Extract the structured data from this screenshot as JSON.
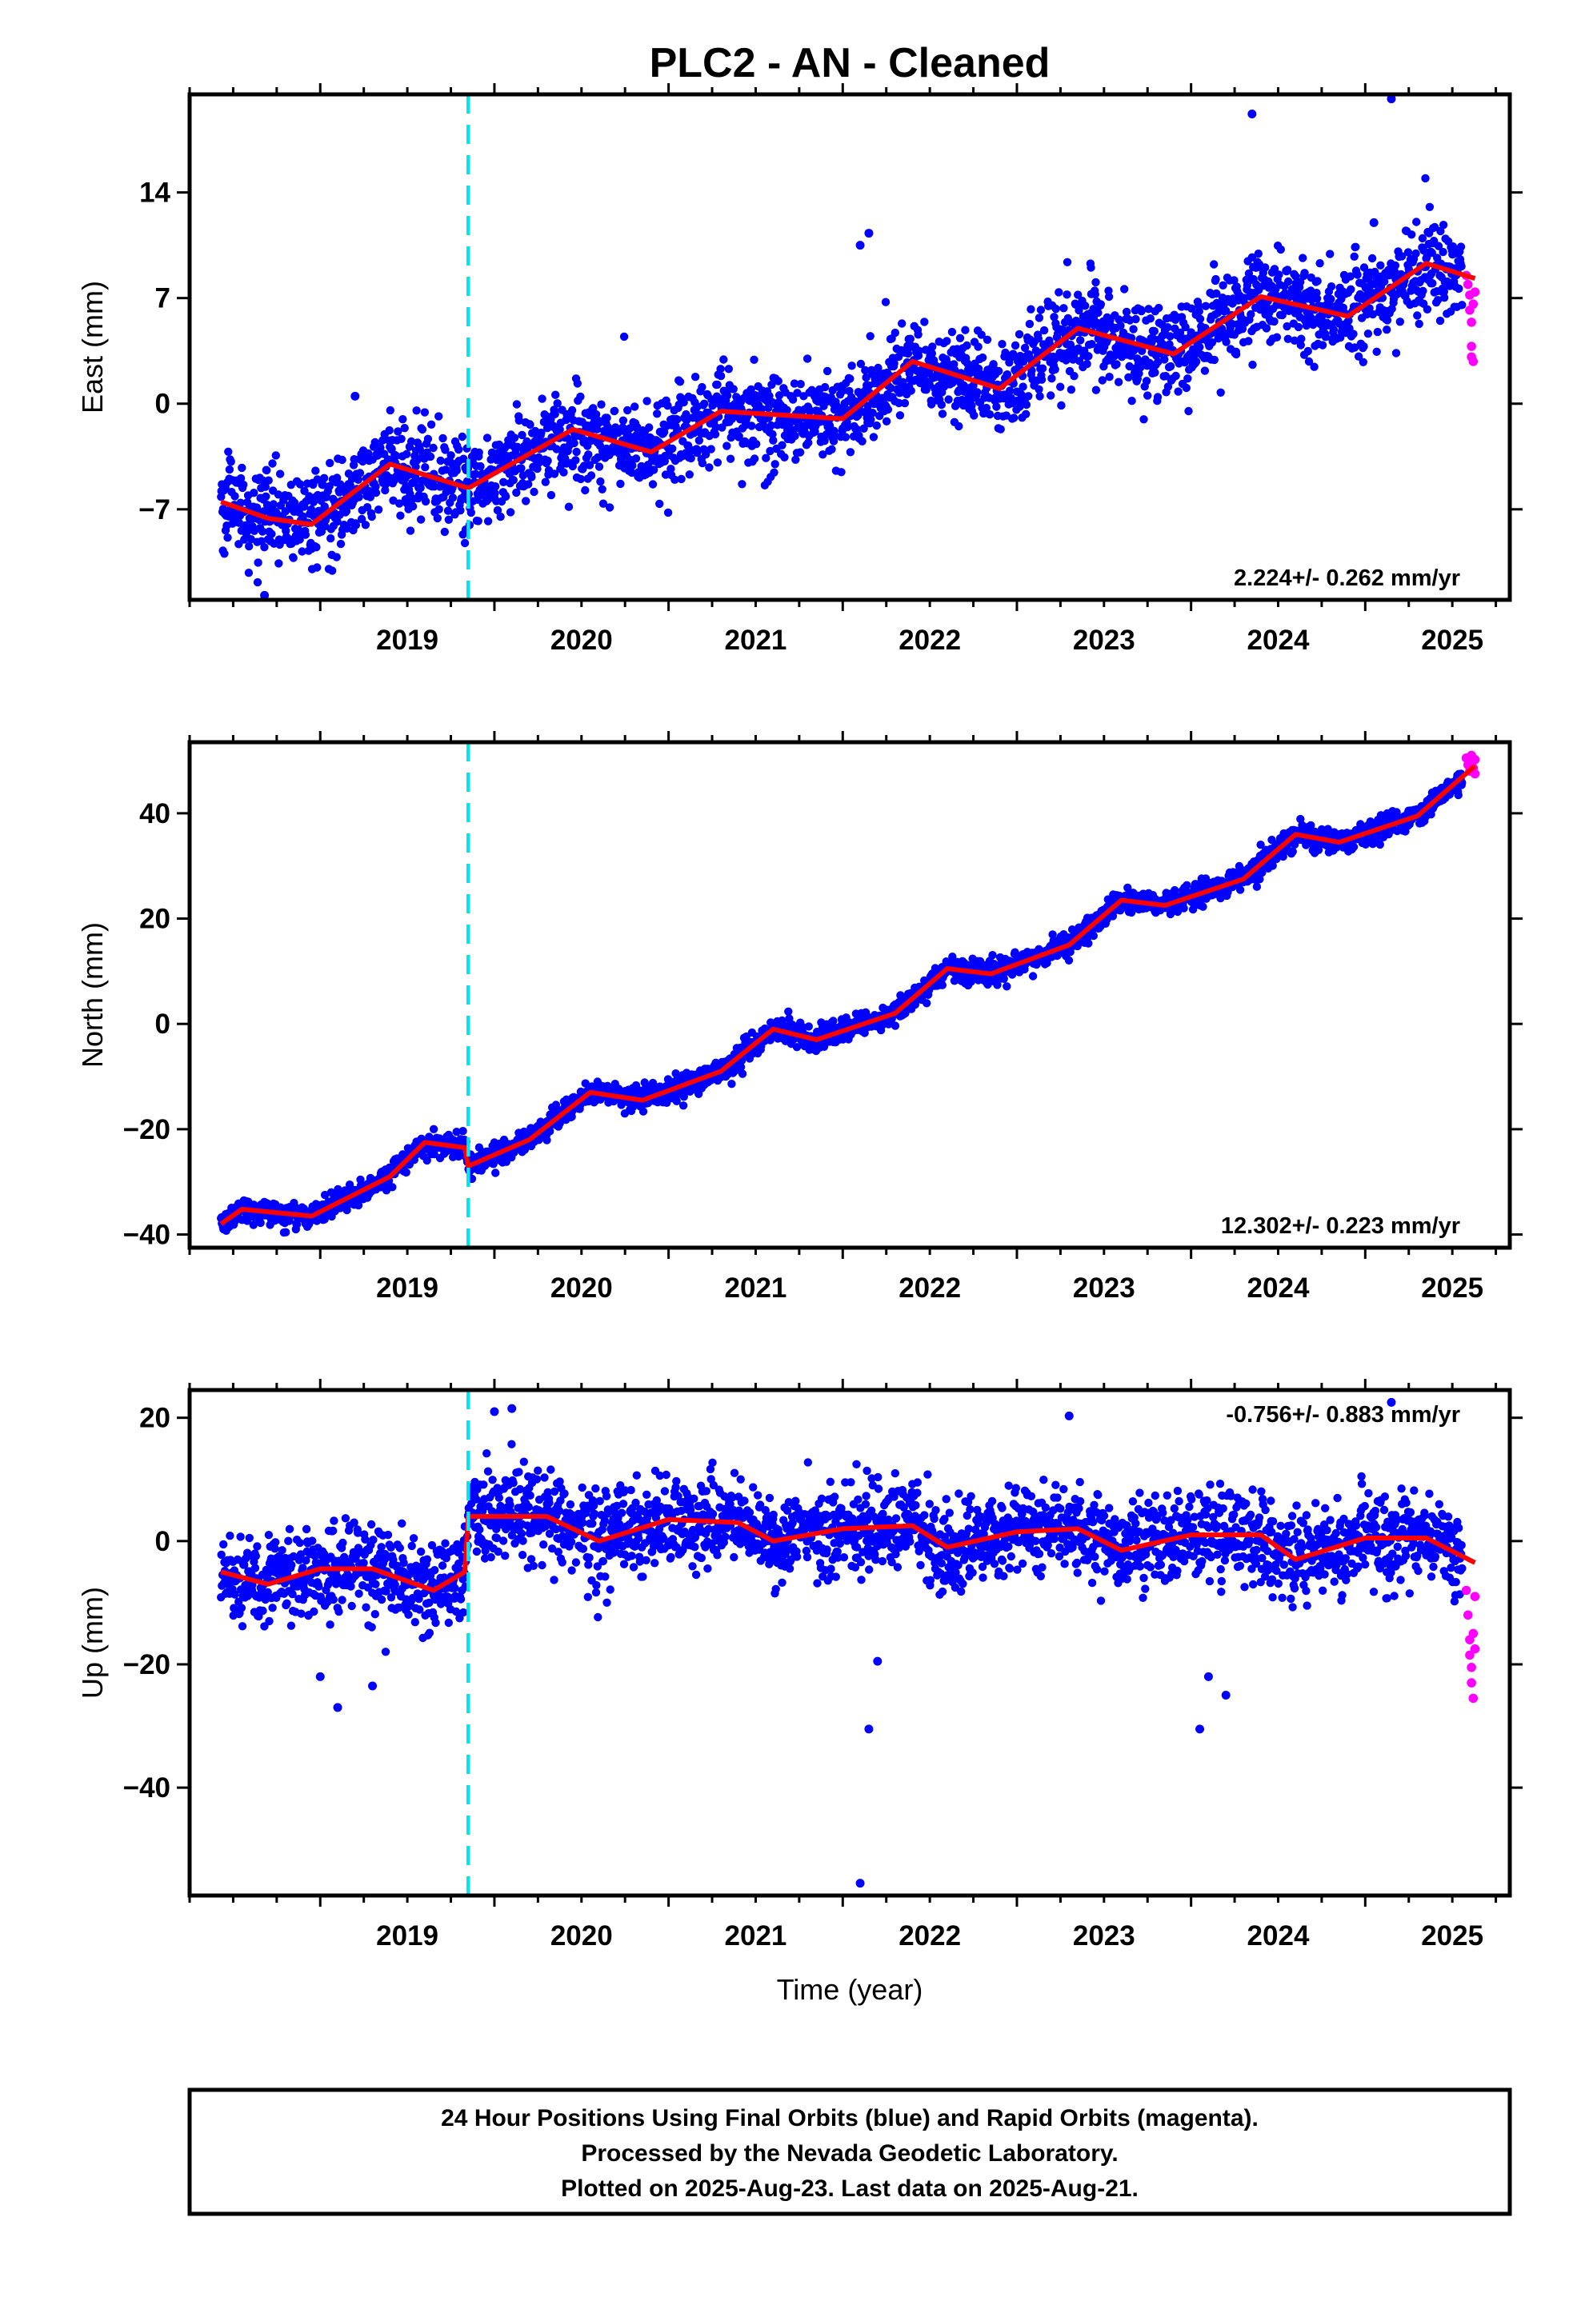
{
  "title": "PLC2  - AN - Cleaned",
  "colors": {
    "final_orbits": "#0000ff",
    "rapid_orbits": "#ff00ff",
    "model": "#ff0000",
    "event_line": "#00e5ee",
    "frame": "#000000"
  },
  "chart_data": [
    {
      "type": "scatter",
      "ylabel": "East (mm)",
      "xlabel": "",
      "xlim": [
        2018.25,
        2025.83
      ],
      "ylim": [
        -13,
        20.5
      ],
      "yticks": [
        -7,
        0,
        7,
        14
      ],
      "xticks": [
        2019,
        2020,
        2021,
        2022,
        2023,
        2024,
        2025
      ],
      "event_line_x": 2019.85,
      "rate_label": "2.224+/- 0.262 mm/yr",
      "rate_position": "bottom-right",
      "trend": {
        "slope": 2.224,
        "value_at_2018_5": -7.4
      },
      "seasonal": {
        "amplitude": 1.4,
        "phase": 0.32
      },
      "offsets": [],
      "scatter_sd": 1.5,
      "model_points": [
        [
          2018.43,
          -6.5
        ],
        [
          2018.7,
          -7.6
        ],
        [
          2018.95,
          -8.0
        ],
        [
          2019.4,
          -4.0
        ],
        [
          2019.85,
          -5.6
        ],
        [
          2020.45,
          -1.7
        ],
        [
          2020.9,
          -3.2
        ],
        [
          2021.3,
          -0.5
        ],
        [
          2022.0,
          -1.0
        ],
        [
          2022.4,
          2.8
        ],
        [
          2022.9,
          1.0
        ],
        [
          2023.35,
          5.0
        ],
        [
          2023.9,
          3.3
        ],
        [
          2024.4,
          7.1
        ],
        [
          2024.9,
          5.8
        ],
        [
          2025.35,
          9.3
        ],
        [
          2025.63,
          8.3
        ]
      ],
      "outliers": [
        [
          2024.35,
          19.2
        ],
        [
          2025.15,
          20.2
        ],
        [
          2022.15,
          11.3
        ],
        [
          2022.1,
          10.5
        ],
        [
          2025.05,
          12.0
        ],
        [
          2019.2,
          0.5
        ],
        [
          2018.68,
          -12.7
        ]
      ],
      "rapid_points": [
        [
          2025.58,
          8.5
        ],
        [
          2025.59,
          7.9
        ],
        [
          2025.6,
          7.2
        ],
        [
          2025.6,
          6.2
        ],
        [
          2025.61,
          5.4
        ],
        [
          2025.61,
          3.8
        ],
        [
          2025.61,
          3.1
        ],
        [
          2025.62,
          2.8
        ],
        [
          2025.62,
          6.6
        ],
        [
          2025.63,
          7.4
        ]
      ]
    },
    {
      "type": "scatter",
      "ylabel": "North (mm)",
      "xlabel": "",
      "xlim": [
        2018.25,
        2025.83
      ],
      "ylim": [
        -42.5,
        53.5
      ],
      "yticks": [
        -40,
        -20,
        0,
        20,
        40
      ],
      "xticks": [
        2019,
        2020,
        2021,
        2022,
        2023,
        2024,
        2025
      ],
      "event_line_x": 2019.85,
      "rate_label": "12.302+/- 0.223 mm/yr",
      "rate_position": "bottom-right",
      "trend": {
        "slope": 12.302,
        "value_at_2018_5": -37.0
      },
      "seasonal": {
        "amplitude": 1.8,
        "phase": 0.35
      },
      "offsets": [
        {
          "x": 2019.85,
          "dy": -3.5
        }
      ],
      "scatter_sd": 1.1,
      "model_points": [
        [
          2018.43,
          -38.0
        ],
        [
          2018.55,
          -35.2
        ],
        [
          2018.95,
          -36.5
        ],
        [
          2019.4,
          -29.0
        ],
        [
          2019.6,
          -22.5
        ],
        [
          2019.83,
          -23.5
        ],
        [
          2019.85,
          -27.0
        ],
        [
          2020.2,
          -22.0
        ],
        [
          2020.55,
          -13.0
        ],
        [
          2020.85,
          -14.5
        ],
        [
          2021.3,
          -9.0
        ],
        [
          2021.6,
          -1.0
        ],
        [
          2021.85,
          -3.0
        ],
        [
          2022.3,
          2.0
        ],
        [
          2022.6,
          10.5
        ],
        [
          2022.85,
          9.5
        ],
        [
          2023.3,
          15.0
        ],
        [
          2023.6,
          23.5
        ],
        [
          2023.85,
          22.5
        ],
        [
          2024.3,
          27.5
        ],
        [
          2024.6,
          36.0
        ],
        [
          2024.85,
          34.5
        ],
        [
          2025.3,
          39.5
        ],
        [
          2025.63,
          49.0
        ]
      ],
      "outliers": [],
      "rapid_points": [
        [
          2025.58,
          50.5
        ],
        [
          2025.59,
          49.2
        ],
        [
          2025.6,
          48.0
        ],
        [
          2025.61,
          51.0
        ],
        [
          2025.61,
          49.8
        ],
        [
          2025.62,
          48.6
        ],
        [
          2025.63,
          50.2
        ],
        [
          2025.63,
          47.5
        ]
      ]
    },
    {
      "type": "scatter",
      "ylabel": "Up (mm)",
      "xlabel": "Time (year)",
      "xlim": [
        2018.25,
        2025.83
      ],
      "ylim": [
        -57.5,
        24.5
      ],
      "yticks": [
        -40,
        -20,
        0,
        20
      ],
      "xticks": [
        2019,
        2020,
        2021,
        2022,
        2023,
        2024,
        2025
      ],
      "event_line_x": 2019.85,
      "rate_label": "-0.756+/- 0.883 mm/yr",
      "rate_position": "top-right",
      "trend": {
        "slope": -0.756,
        "value_at_2018_5": -5.0
      },
      "seasonal": {
        "amplitude": 1.8,
        "phase": 0.3
      },
      "offsets": [
        {
          "x": 2019.85,
          "dy": 9.0
        }
      ],
      "scatter_sd": 3.6,
      "model_points": [
        [
          2018.43,
          -5.0
        ],
        [
          2018.7,
          -7.0
        ],
        [
          2019.0,
          -4.5
        ],
        [
          2019.3,
          -4.5
        ],
        [
          2019.65,
          -8.0
        ],
        [
          2019.83,
          -5.0
        ],
        [
          2019.85,
          4.0
        ],
        [
          2020.3,
          4.0
        ],
        [
          2020.6,
          0.0
        ],
        [
          2021.0,
          3.5
        ],
        [
          2021.4,
          3.0
        ],
        [
          2021.6,
          0.0
        ],
        [
          2022.0,
          2.0
        ],
        [
          2022.4,
          2.5
        ],
        [
          2022.6,
          -1.0
        ],
        [
          2023.0,
          1.5
        ],
        [
          2023.35,
          2.0
        ],
        [
          2023.6,
          -1.5
        ],
        [
          2024.0,
          1.0
        ],
        [
          2024.4,
          1.0
        ],
        [
          2024.6,
          -3.0
        ],
        [
          2025.0,
          0.5
        ],
        [
          2025.35,
          0.5
        ],
        [
          2025.63,
          -3.5
        ]
      ],
      "outliers": [
        [
          2022.1,
          -55.5
        ],
        [
          2022.15,
          -30.5
        ],
        [
          2024.05,
          -30.5
        ],
        [
          2019.1,
          -27.0
        ],
        [
          2022.2,
          -19.5
        ],
        [
          2024.1,
          -22.0
        ],
        [
          2024.2,
          -25.0
        ],
        [
          2020.0,
          21.0
        ],
        [
          2025.15,
          22.5
        ],
        [
          2020.1,
          21.5
        ],
        [
          2023.3,
          20.3
        ],
        [
          2019.0,
          -22.0
        ],
        [
          2019.3,
          -23.5
        ]
      ],
      "rapid_points": [
        [
          2025.58,
          -8.0
        ],
        [
          2025.59,
          -12.0
        ],
        [
          2025.6,
          -16.0
        ],
        [
          2025.6,
          -18.5
        ],
        [
          2025.61,
          -20.5
        ],
        [
          2025.61,
          -23.0
        ],
        [
          2025.62,
          -25.5
        ],
        [
          2025.62,
          -15.0
        ],
        [
          2025.63,
          -17.5
        ],
        [
          2025.63,
          -9.0
        ]
      ]
    }
  ],
  "footer": {
    "line1": "24 Hour Positions Using Final Orbits (blue) and Rapid Orbits (magenta).",
    "line2": "Processed by the Nevada Geodetic Laboratory.",
    "line3": "Plotted on 2025-Aug-23. Last data on 2025-Aug-21."
  }
}
